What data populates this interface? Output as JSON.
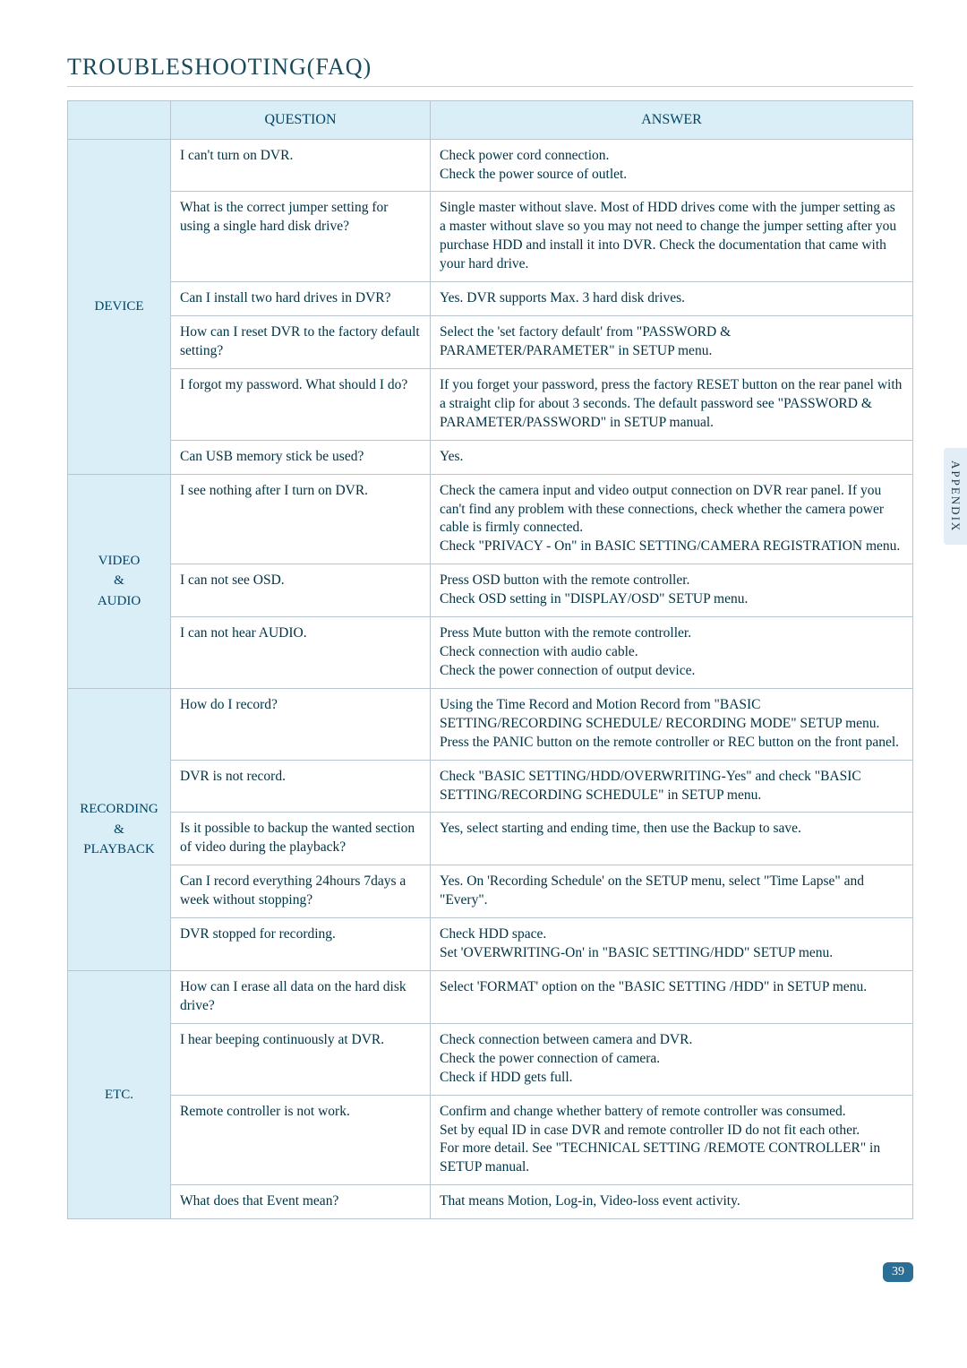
{
  "page": {
    "title": "TROUBLESHOOTING(FAQ)",
    "side_tab": "APPENDIX",
    "page_number": "39"
  },
  "headers": {
    "category_blank": "",
    "question": "QUESTION",
    "answer": "ANSWER"
  },
  "sections": [
    {
      "category": "DEVICE",
      "rows": [
        {
          "q": "I can't turn on DVR.",
          "a": "Check power cord connection.\nCheck the power source of outlet."
        },
        {
          "q": "What is the correct jumper setting for using a single hard disk drive?",
          "a": "Single master without slave. Most of HDD drives come with the jumper setting as a master without slave so you may not need to change the jumper setting after you purchase HDD and install it into DVR. Check the documentation that came with your hard drive."
        },
        {
          "q": "Can I install two hard drives in DVR?",
          "a": "Yes. DVR supports Max. 3 hard disk drives."
        },
        {
          "q": "How can I reset DVR to the factory default setting?",
          "a": "Select the 'set factory default' from \"PASSWORD & PARAMETER/PARAMETER\" in SETUP menu."
        },
        {
          "q": "I forgot my password. What should I do?",
          "a": "If you forget your password, press the factory RESET button on the rear panel with a straight clip for about 3 seconds. The default password see \"PASSWORD & PARAMETER/PASSWORD\" in SETUP manual."
        },
        {
          "q": "Can USB memory stick be used?",
          "a": "Yes."
        }
      ]
    },
    {
      "category": "VIDEO\n&\nAUDIO",
      "rows": [
        {
          "q": "I see nothing after I turn on DVR.",
          "a": "Check the camera input and video output connection on DVR rear panel. If you can't find any problem with these connections, check whether the camera power cable is firmly connected.\nCheck \"PRIVACY - On\" in BASIC SETTING/CAMERA REGISTRATION menu."
        },
        {
          "q": "I can not see OSD.",
          "a": "Press OSD button with the remote controller.\nCheck OSD setting in \"DISPLAY/OSD\" SETUP menu."
        },
        {
          "q": "I can not hear AUDIO.",
          "a": "Press Mute button with the remote controller.\nCheck connection with audio cable.\nCheck the power connection of output device."
        }
      ]
    },
    {
      "category": "RECORDING\n&\nPLAYBACK",
      "rows": [
        {
          "q": "How do I record?",
          "a": "Using the Time Record and Motion Record from \"BASIC SETTING/RECORDING SCHEDULE/ RECORDING MODE\" SETUP menu.\nPress the PANIC button on the remote controller or REC button on the front panel."
        },
        {
          "q": "DVR is not record.",
          "a": "Check \"BASIC SETTING/HDD/OVERWRITING-Yes\" and check \"BASIC SETTING/RECORDING SCHEDULE\" in SETUP menu."
        },
        {
          "q": "Is it possible to backup the wanted section of video during the playback?",
          "a": "Yes, select starting and ending time, then use the Backup to save."
        },
        {
          "q": "Can I record everything 24hours 7days a week without stopping?",
          "a": "Yes. On 'Recording Schedule' on the SETUP menu, select \"Time Lapse\" and \"Every\"."
        },
        {
          "q": "DVR stopped for recording.",
          "a": "Check HDD space.\nSet 'OVERWRITING-On' in \"BASIC SETTING/HDD\" SETUP menu."
        }
      ]
    },
    {
      "category": "ETC.",
      "rows": [
        {
          "q": "How can I erase all data on the hard disk drive?",
          "a": "Select 'FORMAT' option on the \"BASIC SETTING /HDD\" in SETUP menu."
        },
        {
          "q": "I hear beeping continuously at DVR.",
          "a": "Check connection between camera and DVR.\nCheck the power connection of camera.\nCheck if HDD gets full."
        },
        {
          "q": "Remote controller is not work.",
          "a": "Confirm and change whether battery of remote controller was consumed.\nSet by equal ID in case DVR and remote controller ID do not fit each other.\nFor more detail. See \"TECHNICAL SETTING /REMOTE CONTROLLER\" in SETUP manual."
        },
        {
          "q": "What does that Event mean?",
          "a": "That means Motion, Log-in, Video-loss event activity."
        }
      ]
    }
  ]
}
